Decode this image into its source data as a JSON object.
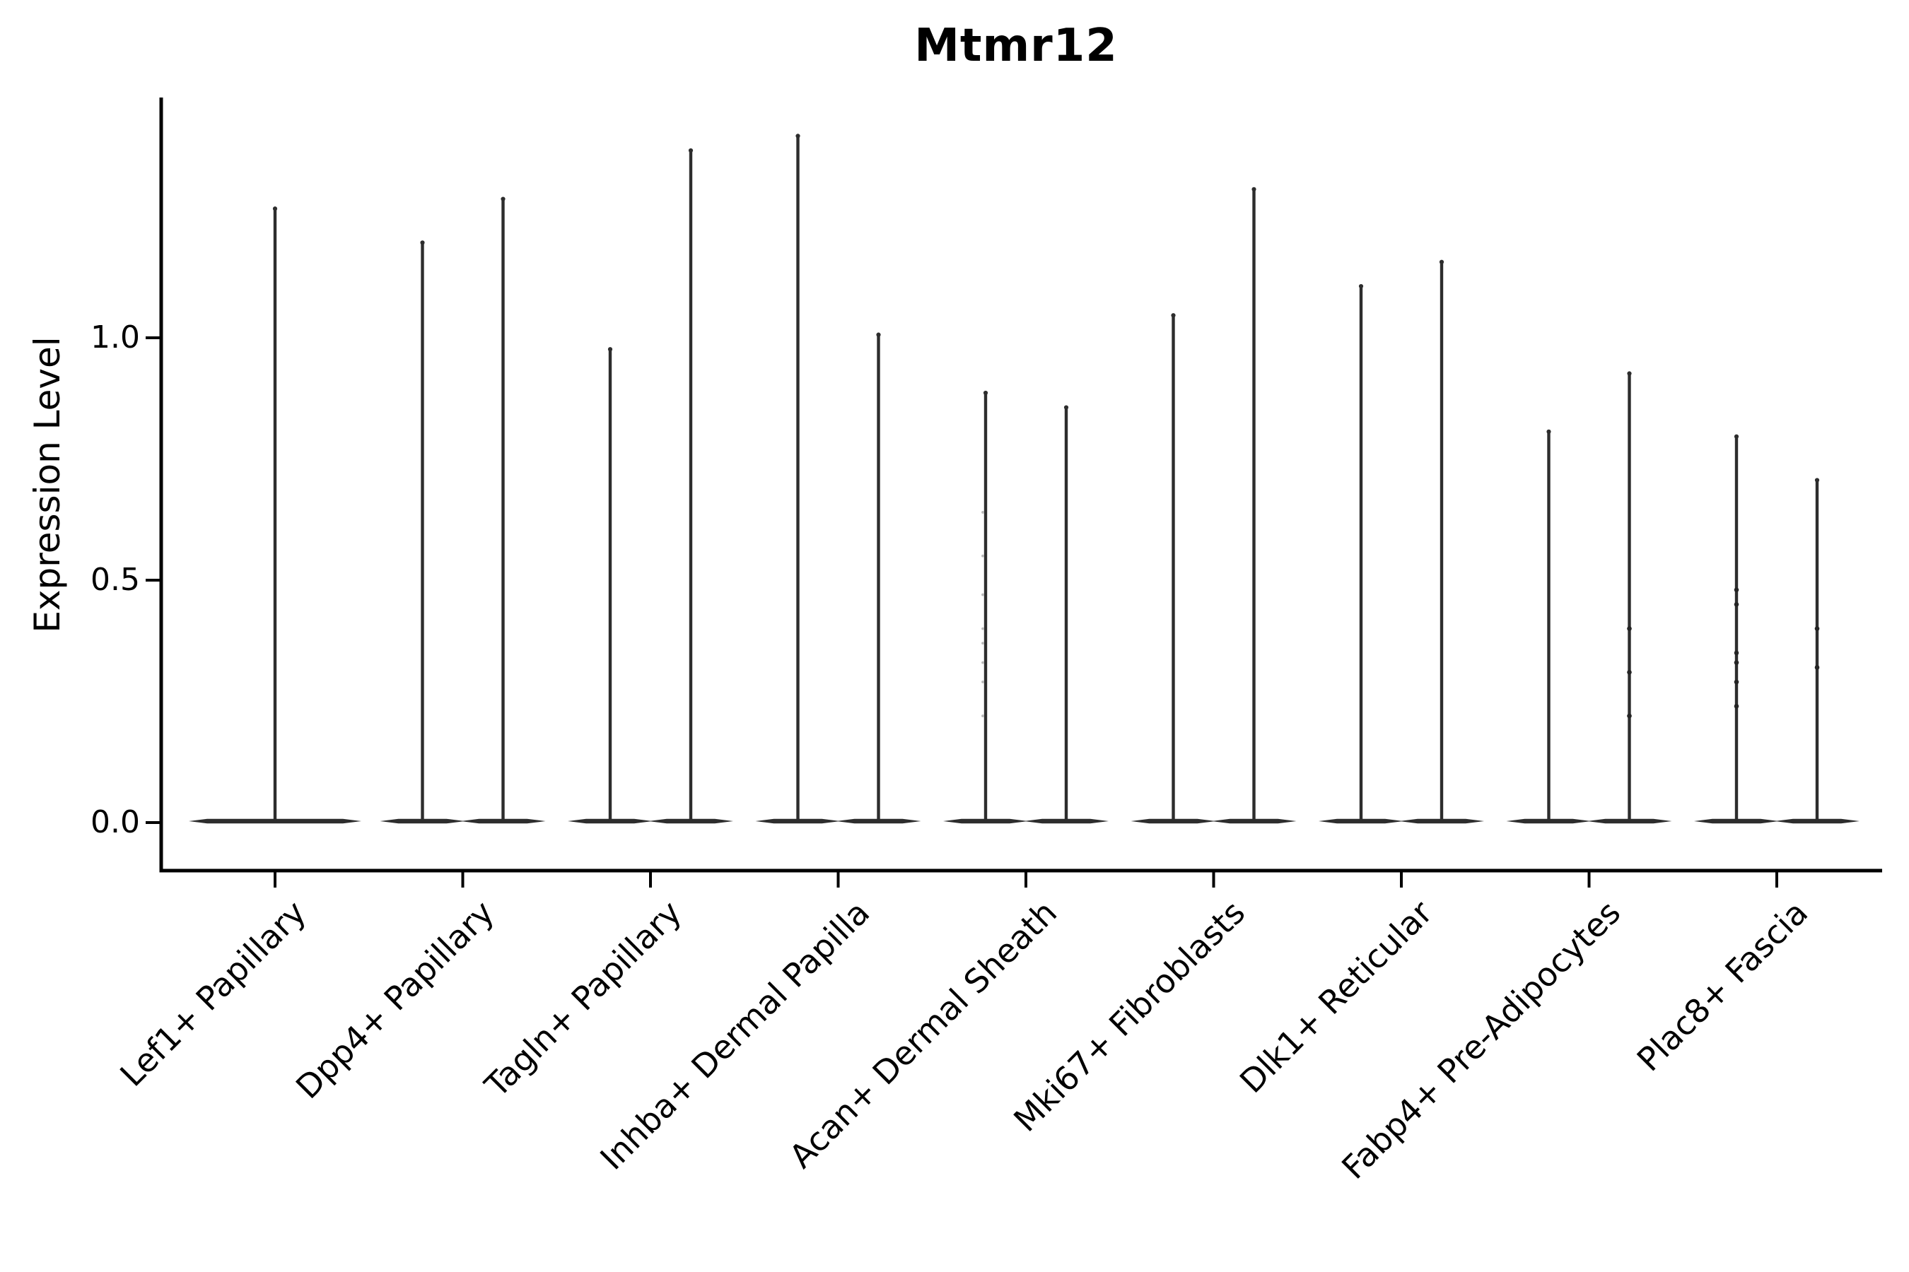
{
  "chart_data": {
    "type": "violin",
    "title": "Mtmr12",
    "ylabel": "Expression Level",
    "xlabel": "",
    "ylim": [
      -0.1,
      1.49
    ],
    "grid": false,
    "legend": "none",
    "yticks": [
      {
        "value": 0.0,
        "label": "0.0"
      },
      {
        "value": 0.5,
        "label": "0.5"
      },
      {
        "value": 1.0,
        "label": "1.0"
      }
    ],
    "categories": [
      "Lef1+ Papillary",
      "Dpp4+ Papillary",
      "Tagln+ Papillary",
      "Inhba+ Dermal Papilla",
      "Acan+ Dermal Sheath",
      "Mki67+ Fibroblasts",
      "Dlk1+ Reticular",
      "Fabp4+ Pre-Adipocytes",
      "Plac8+ Fascia"
    ],
    "distribution_shape": "each violin is bottom-heavy: almost all density collapsed at 0 (wide flat base) with a thin spike tail rising to the max expression value",
    "violins": [
      {
        "category": "Lef1+ Papillary",
        "split": false,
        "max": 1.27
      },
      {
        "category": "Dpp4+ Papillary",
        "split": true,
        "max_left": 1.2,
        "max_right": 1.29
      },
      {
        "category": "Tagln+ Papillary",
        "split": true,
        "max_left": 0.98,
        "max_right": 1.39
      },
      {
        "category": "Inhba+ Dermal Papilla",
        "split": true,
        "max_left": 1.42,
        "max_right": 1.01
      },
      {
        "category": "Acan+ Dermal Sheath",
        "split": true,
        "max_left": 0.89,
        "max_right": 0.86
      },
      {
        "category": "Mki67+ Fibroblasts",
        "split": true,
        "max_left": 1.05,
        "max_right": 1.31
      },
      {
        "category": "Dlk1+ Reticular",
        "split": true,
        "max_left": 1.11,
        "max_right": 1.16
      },
      {
        "category": "Fabp4+ Pre-Adipocytes",
        "split": true,
        "max_left": 0.81,
        "max_right": 0.93
      },
      {
        "category": "Plac8+ Fascia",
        "split": true,
        "max_left": 0.8,
        "max_right": 0.71
      }
    ],
    "points": [
      {
        "category_index": 7,
        "side": "right",
        "style": "dark",
        "values": [
          0.4,
          0.31,
          0.22
        ]
      },
      {
        "category_index": 8,
        "side": "left",
        "style": "dark",
        "values": [
          0.48,
          0.45,
          0.35,
          0.33,
          0.29,
          0.24
        ]
      },
      {
        "category_index": 8,
        "side": "right",
        "style": "dark",
        "values": [
          0.4,
          0.32
        ]
      },
      {
        "category_index": 4,
        "side": "left",
        "style": "faint",
        "values": [
          0.64,
          0.55,
          0.47,
          0.4,
          0.37,
          0.33,
          0.29,
          0.22
        ]
      }
    ],
    "colors": {
      "line": "#2d2d2d",
      "axis": "#000000",
      "text": "#000000",
      "faint_point": "#b8b8b8",
      "background": "#ffffff"
    }
  }
}
